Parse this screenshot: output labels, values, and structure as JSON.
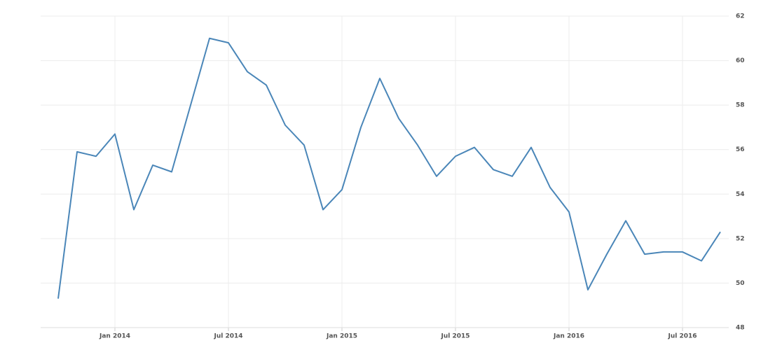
{
  "chart_data": {
    "type": "line",
    "x": [
      "2013-10",
      "2013-11",
      "2013-12",
      "2014-01",
      "2014-02",
      "2014-03",
      "2014-04",
      "2014-05",
      "2014-06",
      "2014-07",
      "2014-08",
      "2014-09",
      "2014-10",
      "2014-11",
      "2014-12",
      "2015-01",
      "2015-02",
      "2015-03",
      "2015-04",
      "2015-05",
      "2015-06",
      "2015-07",
      "2015-08",
      "2015-09",
      "2015-10",
      "2015-11",
      "2015-12",
      "2016-01",
      "2016-02",
      "2016-03",
      "2016-04",
      "2016-05",
      "2016-06",
      "2016-07",
      "2016-08",
      "2016-09"
    ],
    "series": [
      {
        "color": "#4a86b8",
        "values": [
          49.3,
          55.9,
          55.7,
          56.7,
          53.3,
          55.3,
          55.0,
          58.0,
          61.0,
          60.8,
          59.5,
          58.9,
          57.1,
          56.2,
          53.3,
          54.2,
          57.0,
          59.2,
          57.4,
          56.2,
          54.8,
          55.7,
          56.1,
          55.1,
          54.8,
          56.1,
          54.3,
          53.2,
          49.7,
          51.3,
          52.8,
          51.3,
          51.4,
          51.4,
          51.0,
          52.3
        ]
      }
    ],
    "xlim": [
      "2013-09",
      "2016-10"
    ],
    "xticks": [
      {
        "value": "2014-01",
        "label": "Jan 2014"
      },
      {
        "value": "2014-07",
        "label": "Jul 2014"
      },
      {
        "value": "2015-01",
        "label": "Jan 2015"
      },
      {
        "value": "2015-07",
        "label": "Jul 2015"
      },
      {
        "value": "2016-01",
        "label": "Jan 2016"
      },
      {
        "value": "2016-07",
        "label": "Jul 2016"
      }
    ],
    "ylim": [
      48,
      62
    ],
    "yticks": [
      48,
      50,
      52,
      54,
      56,
      58,
      60,
      62
    ],
    "grid": true
  }
}
